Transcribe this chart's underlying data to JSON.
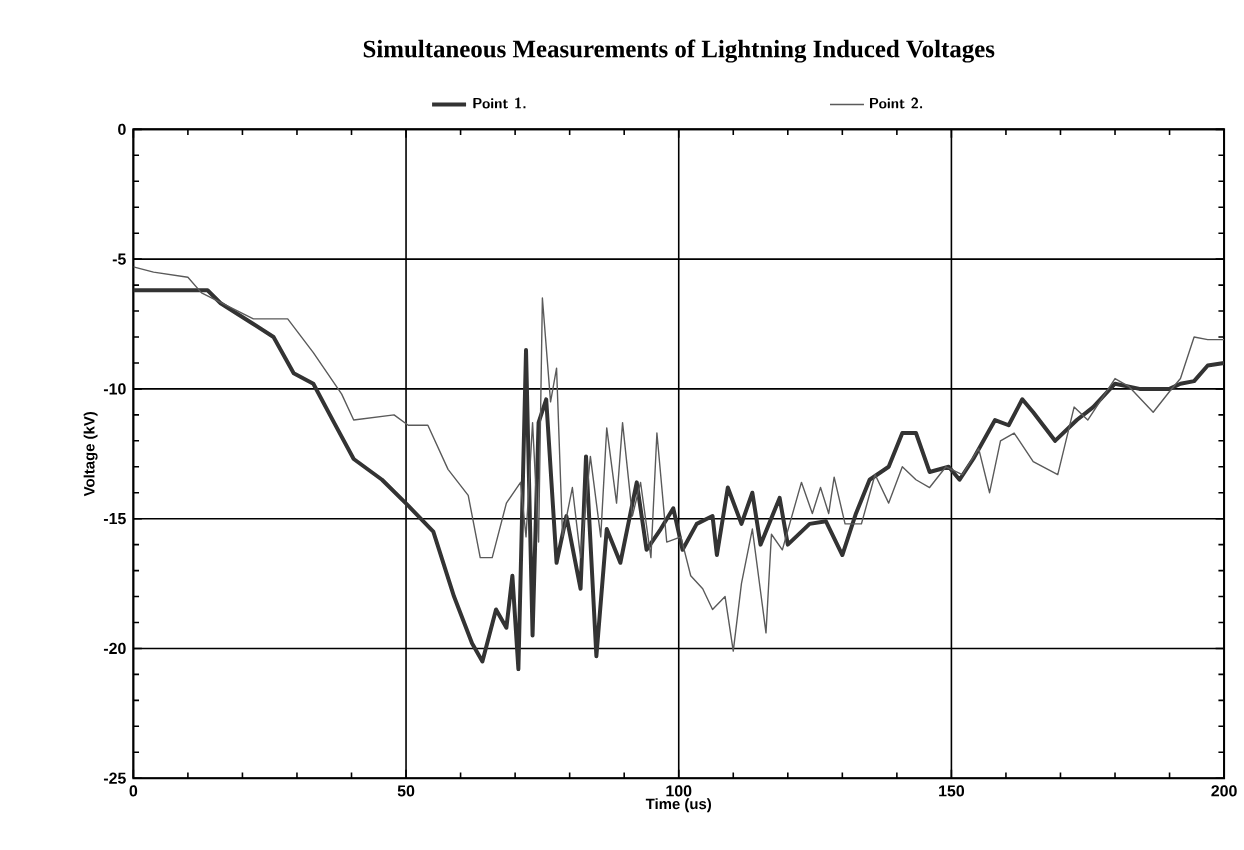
{
  "chart_data": {
    "type": "line",
    "title": "Simultaneous Measurements of Lightning Induced Voltages",
    "xlabel": "Time (us)",
    "ylabel": "Voltage (kV)",
    "xlim": [
      0,
      200
    ],
    "ylim": [
      -25,
      0
    ],
    "xticks": [
      0,
      50,
      100,
      150,
      200
    ],
    "yticks": [
      -25,
      -20,
      -15,
      -10,
      -5,
      0
    ],
    "grid": true,
    "legend": "top",
    "line_style": "solid",
    "marker": "none",
    "series": [
      {
        "name": "Point 1.",
        "color": "#333333",
        "x": [
          0,
          13.6,
          16,
          22,
          25.7,
          29.4,
          33,
          36.8,
          40.4,
          45.6,
          50.4,
          55,
          58.8,
          62.1,
          64,
          66.5,
          68.4,
          69.5,
          70.6,
          72,
          73.2,
          74.3,
          75.7,
          77.6,
          79.4,
          82,
          83,
          84.9,
          86.8,
          89.3,
          92.3,
          94.1,
          96.7,
          99,
          100.7,
          103.3,
          106.2,
          107,
          109,
          111.5,
          113.5,
          115,
          118.5,
          120,
          124,
          127,
          130,
          132.5,
          135,
          138.5,
          141,
          143.5,
          146,
          149.5,
          151.5,
          154,
          158,
          160.5,
          163,
          165,
          169,
          173,
          176,
          180,
          184.5,
          190,
          192,
          194.5,
          197,
          200
        ],
        "values": [
          -6.2,
          -6.2,
          -6.7,
          -7.5,
          -8,
          -9.4,
          -9.8,
          -11.3,
          -12.7,
          -13.5,
          -14.5,
          -15.5,
          -18,
          -19.8,
          -20.5,
          -18.5,
          -19.2,
          -17.2,
          -20.8,
          -8.5,
          -19.5,
          -11.3,
          -10.4,
          -16.7,
          -14.9,
          -17.7,
          -12.6,
          -20.3,
          -15.4,
          -16.7,
          -13.6,
          -16.2,
          -15.4,
          -14.6,
          -16.2,
          -15.2,
          -14.9,
          -16.4,
          -13.8,
          -15.2,
          -14,
          -16,
          -14.2,
          -16,
          -15.2,
          -15.1,
          -16.4,
          -14.8,
          -13.5,
          -13,
          -11.7,
          -11.7,
          -13.2,
          -13,
          -13.5,
          -12.7,
          -11.2,
          -11.4,
          -10.4,
          -10.9,
          -12,
          -11.2,
          -10.7,
          -9.8,
          -10,
          -10,
          -9.8,
          -9.7,
          -9.1,
          -9
        ]
      },
      {
        "name": "Point 2.",
        "color": "#5a5a5a",
        "x": [
          0,
          3.7,
          10,
          12.5,
          22,
          28.3,
          33,
          38.2,
          40.4,
          47.8,
          50.4,
          54,
          57.7,
          61.4,
          63.6,
          65.8,
          68.4,
          71,
          72,
          73.2,
          74.3,
          75,
          76.5,
          77.6,
          78.7,
          80.5,
          82,
          83.8,
          85.7,
          86.8,
          88.6,
          89.7,
          91.5,
          93,
          94.9,
          96,
          97.8,
          100.4,
          102.2,
          104.4,
          106.2,
          108.5,
          110,
          111.5,
          113.5,
          116,
          117,
          119,
          122.5,
          124.5,
          126,
          127.5,
          128.5,
          130.5,
          133.5,
          136,
          138.5,
          141,
          143.5,
          146,
          149,
          152,
          155,
          157,
          159,
          161.5,
          165,
          169.5,
          172.5,
          175,
          177.5,
          180,
          182.5,
          187,
          190,
          192,
          194.5,
          197,
          200
        ],
        "values": [
          -5.3,
          -5.5,
          -5.7,
          -6.3,
          -7.3,
          -7.3,
          -8.6,
          -10.2,
          -11.2,
          -11,
          -11.4,
          -11.4,
          -13.1,
          -14.1,
          -16.5,
          -16.5,
          -14.4,
          -13.6,
          -15.7,
          -11.3,
          -15.9,
          -6.5,
          -10.5,
          -9.2,
          -15.7,
          -13.8,
          -16.5,
          -12.6,
          -15.7,
          -11.5,
          -14.4,
          -11.3,
          -14.9,
          -13.6,
          -16.5,
          -11.7,
          -15.9,
          -15.7,
          -17.2,
          -17.7,
          -18.5,
          -18,
          -20.1,
          -17.5,
          -15.4,
          -19.4,
          -15.6,
          -16.2,
          -13.6,
          -14.8,
          -13.8,
          -14.8,
          -13.4,
          -15.2,
          -15.2,
          -13.3,
          -14.4,
          -13,
          -13.5,
          -13.8,
          -13,
          -13.3,
          -12.3,
          -14,
          -12,
          -11.7,
          -12.8,
          -13.3,
          -10.7,
          -11.2,
          -10.4,
          -9.6,
          -9.9,
          -10.9,
          -10.1,
          -9.6,
          -8,
          -8.1,
          -8.1
        ]
      }
    ]
  }
}
